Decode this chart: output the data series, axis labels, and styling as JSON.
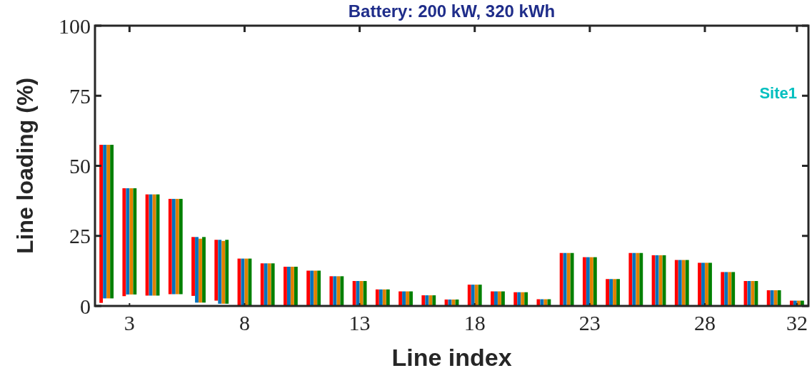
{
  "chart_data": {
    "type": "bar",
    "title": "Battery: 200 kW, 320 kWh",
    "xlabel": "Line index",
    "ylabel": "Line loading (%)",
    "annotations": [
      "Site1"
    ],
    "x": [
      2,
      3,
      4,
      5,
      6,
      7,
      8,
      9,
      10,
      11,
      12,
      13,
      14,
      15,
      16,
      17,
      18,
      19,
      20,
      21,
      22,
      23,
      24,
      25,
      26,
      27,
      28,
      29,
      30,
      31,
      32
    ],
    "xlim": [
      1.5,
      32.5
    ],
    "xticks": [
      3,
      8,
      13,
      18,
      23,
      28,
      32
    ],
    "ylim": [
      0,
      100
    ],
    "yticks": [
      0,
      25,
      50,
      75,
      100
    ],
    "grid": false,
    "series": [
      {
        "color": "#ff0000",
        "base": [
          1.1,
          3.5,
          3.7,
          4.2,
          3.6,
          1.9,
          0,
          0,
          0,
          0,
          0,
          0,
          0,
          0,
          0,
          0,
          0,
          0,
          0,
          0,
          0,
          0,
          0,
          0,
          0,
          0,
          0,
          0,
          0,
          0,
          0
        ],
        "values": [
          56.4,
          38.5,
          36.1,
          34.0,
          21.0,
          21.7,
          16.9,
          15.2,
          14.0,
          12.6,
          10.6,
          8.9,
          5.9,
          5.2,
          3.8,
          2.3,
          7.6,
          5.2,
          4.9,
          2.4,
          18.9,
          17.4,
          9.6,
          18.9,
          18.1,
          16.4,
          15.4,
          12.1,
          8.9,
          5.6,
          1.9
        ]
      },
      {
        "color": "#0072bd",
        "base": [
          2.7,
          4.1,
          3.7,
          4.2,
          1.2,
          0.8,
          0,
          0,
          0,
          0,
          0,
          0,
          0,
          0,
          0,
          0,
          0,
          0,
          0,
          0,
          0,
          0,
          0,
          0,
          0,
          0,
          0,
          0,
          0,
          0,
          0
        ],
        "values": [
          54.8,
          37.9,
          36.1,
          34.0,
          23.4,
          22.8,
          16.9,
          15.2,
          14.0,
          12.6,
          10.6,
          8.9,
          5.9,
          5.2,
          3.8,
          2.3,
          7.6,
          5.2,
          4.9,
          2.4,
          18.9,
          17.4,
          9.6,
          18.9,
          18.1,
          16.4,
          15.4,
          12.1,
          8.9,
          5.6,
          1.9
        ]
      },
      {
        "color": "#e08000",
        "base": [
          2.7,
          4.1,
          3.7,
          4.2,
          1.2,
          0.8,
          0,
          0,
          0,
          0,
          0,
          0,
          0,
          0,
          0,
          0,
          0,
          0,
          0,
          0,
          0,
          0,
          0,
          0,
          0,
          0,
          0,
          0,
          0,
          0,
          0
        ],
        "values": [
          54.8,
          37.9,
          36.1,
          34.0,
          22.8,
          22.4,
          16.9,
          15.2,
          14.0,
          12.6,
          10.6,
          8.9,
          5.9,
          5.2,
          3.8,
          2.3,
          7.6,
          5.2,
          4.9,
          2.4,
          18.9,
          17.4,
          9.6,
          18.9,
          18.1,
          16.4,
          15.4,
          12.1,
          8.9,
          5.6,
          1.9
        ]
      },
      {
        "color": "#008000",
        "base": [
          2.7,
          4.1,
          3.7,
          4.2,
          1.2,
          0.8,
          0,
          0,
          0,
          0,
          0,
          0,
          0,
          0,
          0,
          0,
          0,
          0,
          0,
          0,
          0,
          0,
          0,
          0,
          0,
          0,
          0,
          0,
          0,
          0,
          0
        ],
        "values": [
          54.8,
          37.9,
          36.1,
          34.0,
          23.4,
          22.8,
          16.9,
          15.2,
          14.0,
          12.6,
          10.6,
          8.9,
          5.9,
          5.2,
          3.8,
          2.3,
          7.6,
          5.2,
          4.9,
          2.4,
          18.9,
          17.4,
          9.6,
          18.9,
          18.1,
          16.4,
          15.4,
          12.1,
          8.9,
          5.6,
          1.9
        ]
      }
    ]
  }
}
